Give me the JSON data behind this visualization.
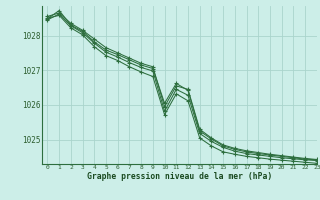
{
  "title": "Graphe pression niveau de la mer (hPa)",
  "bg_color": "#cceee8",
  "grid_color": "#aad4cc",
  "line_color": "#2d6e3e",
  "tick_label_color": "#2d5e30",
  "title_color": "#1a4a20",
  "xlim": [
    -0.5,
    23
  ],
  "ylim": [
    1024.3,
    1028.85
  ],
  "yticks": [
    1025,
    1026,
    1027,
    1028
  ],
  "xticks": [
    0,
    1,
    2,
    3,
    4,
    5,
    6,
    7,
    8,
    9,
    10,
    11,
    12,
    13,
    14,
    15,
    16,
    17,
    18,
    19,
    20,
    21,
    22,
    23
  ],
  "series": [
    [
      1028.55,
      1028.65,
      1028.35,
      1028.15,
      1027.9,
      1027.65,
      1027.5,
      1027.35,
      1027.2,
      1027.1,
      1025.95,
      1026.55,
      1026.45,
      1025.3,
      1025.05,
      1024.85,
      1024.75,
      1024.68,
      1024.63,
      1024.58,
      1024.54,
      1024.5,
      1024.46,
      1024.43
    ],
    [
      1028.45,
      1028.62,
      1028.28,
      1028.08,
      1027.78,
      1027.52,
      1027.38,
      1027.22,
      1027.08,
      1026.98,
      1025.82,
      1026.45,
      1026.28,
      1025.18,
      1024.95,
      1024.78,
      1024.67,
      1024.6,
      1024.56,
      1024.52,
      1024.48,
      1024.45,
      1024.42,
      1024.4
    ],
    [
      1028.5,
      1028.58,
      1028.22,
      1028.02,
      1027.68,
      1027.42,
      1027.28,
      1027.1,
      1026.95,
      1026.82,
      1025.72,
      1026.32,
      1026.12,
      1025.05,
      1024.82,
      1024.65,
      1024.58,
      1024.52,
      1024.48,
      1024.44,
      1024.41,
      1024.38,
      1024.35,
      1024.32
    ],
    [
      1028.48,
      1028.72,
      1028.3,
      1028.12,
      1027.82,
      1027.58,
      1027.45,
      1027.3,
      1027.15,
      1027.05,
      1026.05,
      1026.62,
      1026.42,
      1025.25,
      1025.02,
      1024.82,
      1024.72,
      1024.65,
      1024.6,
      1024.56,
      1024.52,
      1024.48,
      1024.44,
      1024.42
    ]
  ]
}
